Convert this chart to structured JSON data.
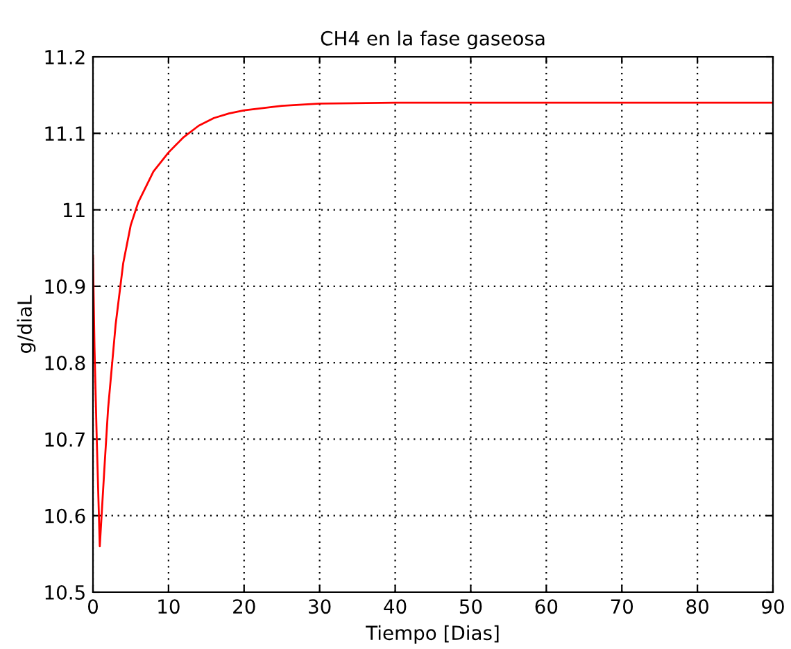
{
  "chart_data": {
    "type": "line",
    "title": "CH4 en la fase gaseosa",
    "xlabel": "Tiempo [Dias]",
    "ylabel": "g/diaL",
    "series": [
      {
        "color": "#ff0000",
        "x": [
          0,
          0.2,
          0.5,
          0.9,
          1.5,
          2,
          3,
          4,
          5,
          6,
          8,
          10,
          12,
          14,
          16,
          18,
          20,
          25,
          30,
          40,
          60,
          90
        ],
        "values": [
          10.94,
          10.82,
          10.7,
          10.56,
          10.66,
          10.74,
          10.85,
          10.93,
          10.98,
          11.01,
          11.05,
          11.075,
          11.095,
          11.11,
          11.12,
          11.126,
          11.13,
          11.136,
          11.139,
          11.14,
          11.14,
          11.14
        ]
      }
    ],
    "xlim": [
      0,
      90
    ],
    "ylim": [
      10.5,
      11.2
    ],
    "xticks": [
      0,
      10,
      20,
      30,
      40,
      50,
      60,
      70,
      80,
      90
    ],
    "yticks": [
      10.5,
      10.6,
      10.7,
      10.8,
      10.9,
      11,
      11.1,
      11.2
    ],
    "grid": true,
    "marker": "none",
    "line_style": "solid"
  }
}
